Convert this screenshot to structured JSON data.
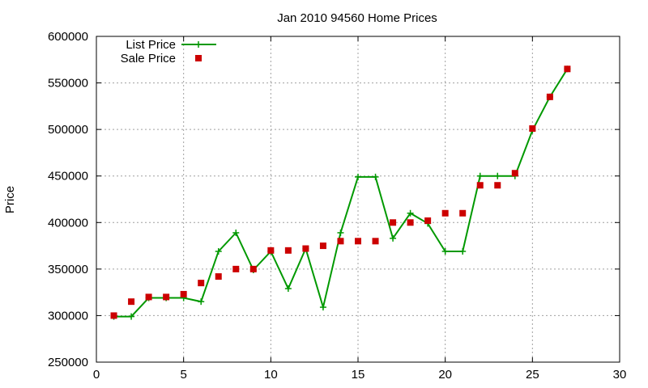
{
  "chart_data": {
    "type": "line",
    "title": "Jan 2010 94560 Home Prices",
    "xlabel": "",
    "ylabel": "Price",
    "xlim": [
      0,
      30
    ],
    "ylim": [
      250000,
      600000
    ],
    "x_ticks": [
      0,
      5,
      10,
      15,
      20,
      25,
      30
    ],
    "y_ticks": [
      250000,
      300000,
      350000,
      400000,
      450000,
      500000,
      550000,
      600000
    ],
    "grid": true,
    "legend_position": "top-left",
    "colors": {
      "list": "#009900",
      "sale": "#cc0000"
    },
    "series": [
      {
        "name": "List Price",
        "style": "line-plus",
        "x": [
          1,
          2,
          3,
          4,
          5,
          6,
          7,
          8,
          9,
          10,
          11,
          12,
          13,
          14,
          15,
          16,
          17,
          18,
          19,
          20,
          21,
          22,
          23,
          24,
          25,
          26,
          27
        ],
        "values": [
          299000,
          299000,
          319000,
          319000,
          319000,
          315000,
          369000,
          389000,
          349000,
          369000,
          329000,
          372000,
          309000,
          389000,
          449000,
          449000,
          383000,
          410000,
          399000,
          369000,
          369000,
          450000,
          450000,
          450000,
          499000,
          535000,
          565000
        ]
      },
      {
        "name": "Sale Price",
        "style": "square-marker",
        "x": [
          1,
          2,
          3,
          4,
          5,
          6,
          7,
          8,
          9,
          10,
          11,
          12,
          13,
          14,
          15,
          16,
          17,
          18,
          19,
          20,
          21,
          22,
          23,
          24,
          25,
          26,
          27
        ],
        "values": [
          300000,
          315000,
          320000,
          320000,
          323000,
          335000,
          342000,
          350000,
          350000,
          370000,
          370000,
          372000,
          375000,
          380000,
          380000,
          380000,
          400000,
          400000,
          402000,
          410000,
          410000,
          440000,
          440000,
          453000,
          501000,
          535000,
          565000
        ]
      }
    ]
  }
}
